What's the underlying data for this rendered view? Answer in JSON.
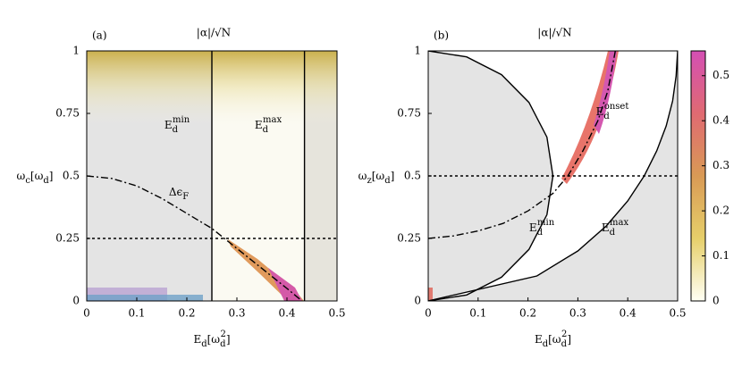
{
  "chart_data": [
    {
      "type": "line",
      "panel_label": "(a)",
      "title": "|α|/√N",
      "xlabel": [
        "E",
        "d",
        "[ω",
        "d",
        "2",
        "]"
      ],
      "ylabel": [
        "ω",
        "c",
        "[ω",
        "d",
        "]"
      ],
      "xlim": [
        0,
        0.5
      ],
      "ylim": [
        0,
        1
      ],
      "xticks": [
        0,
        0.1,
        0.2,
        0.3,
        0.4,
        0.5
      ],
      "yticks": [
        0,
        0.25,
        0.5,
        0.75,
        1
      ],
      "lines": [
        {
          "style": "dashdot",
          "color": "#000000",
          "x": [
            0,
            0.05,
            0.1,
            0.15,
            0.2,
            0.25,
            0.3,
            0.35,
            0.4,
            0.43
          ],
          "y": [
            0.5,
            0.49,
            0.46,
            0.41,
            0.35,
            0.29,
            0.21,
            0.13,
            0.05,
            0
          ]
        },
        {
          "style": "dotted",
          "color": "#000000",
          "x": [
            0,
            0.5
          ],
          "y": [
            0.25,
            0.25
          ]
        },
        {
          "style": "solid",
          "color": "#000000",
          "x": [
            0.25,
            0.25
          ],
          "y": [
            0,
            1
          ]
        },
        {
          "style": "solid",
          "color": "#000000",
          "x": [
            0.435,
            0.435
          ],
          "y": [
            0,
            1
          ]
        }
      ],
      "annotations": [
        {
          "parts": [
            "E",
            "d",
            "min"
          ]
        },
        {
          "parts": [
            "E",
            "d",
            "max"
          ]
        },
        {
          "parts": [
            "Δϵ",
            "F"
          ]
        }
      ]
    },
    {
      "type": "line",
      "panel_label": "(b)",
      "title": "|α|/√N",
      "xlabel": [
        "E",
        "d",
        "[ω",
        "d",
        "2",
        "]"
      ],
      "ylabel": [
        "ω",
        "z",
        "[ω",
        "d",
        "]"
      ],
      "xlim": [
        0,
        0.5
      ],
      "ylim": [
        0,
        1
      ],
      "xticks": [
        0,
        0.1,
        0.2,
        0.3,
        0.4,
        0.5
      ],
      "yticks": [
        0,
        0.25,
        0.5,
        0.75,
        1
      ],
      "lines": [
        {
          "style": "solid",
          "color": "#000000",
          "x": [
            0,
            0.077,
            0.147,
            0.202,
            0.238,
            0.25,
            0.238,
            0.202,
            0.147,
            0.077,
            0
          ],
          "y": [
            0,
            0.024,
            0.095,
            0.206,
            0.345,
            0.5,
            0.655,
            0.794,
            0.905,
            0.976,
            1
          ]
        },
        {
          "style": "solid",
          "color": "#000000",
          "x": [
            0,
            0.218,
            0.3,
            0.357,
            0.4,
            0.433,
            0.458,
            0.477,
            0.49,
            0.497,
            0.5
          ],
          "y": [
            0,
            0.1,
            0.2,
            0.3,
            0.4,
            0.5,
            0.6,
            0.7,
            0.8,
            0.9,
            1
          ]
        },
        {
          "style": "dotted",
          "color": "#000000",
          "x": [
            0,
            0.5
          ],
          "y": [
            0.5,
            0.5
          ]
        },
        {
          "style": "dashdot",
          "color": "#000000",
          "x": [
            0,
            0.05,
            0.1,
            0.15,
            0.2,
            0.25,
            0.28,
            0.31,
            0.34,
            0.36,
            0.375
          ],
          "y": [
            0.25,
            0.26,
            0.28,
            0.31,
            0.36,
            0.43,
            0.5,
            0.6,
            0.72,
            0.84,
            1
          ]
        }
      ],
      "annotations": [
        {
          "parts": [
            "E",
            "d",
            "onset"
          ]
        },
        {
          "parts": [
            "E",
            "d",
            "min"
          ]
        },
        {
          "parts": [
            "E",
            "d",
            "max"
          ]
        }
      ],
      "colorbar": {
        "lim": [
          0,
          0.555
        ],
        "ticks": [
          0,
          0.1,
          0.2,
          0.3,
          0.4,
          0.5
        ],
        "colors": [
          "#fffff4",
          "#e6cf6a",
          "#d99a55",
          "#e06a72",
          "#d44fb4"
        ]
      }
    }
  ]
}
